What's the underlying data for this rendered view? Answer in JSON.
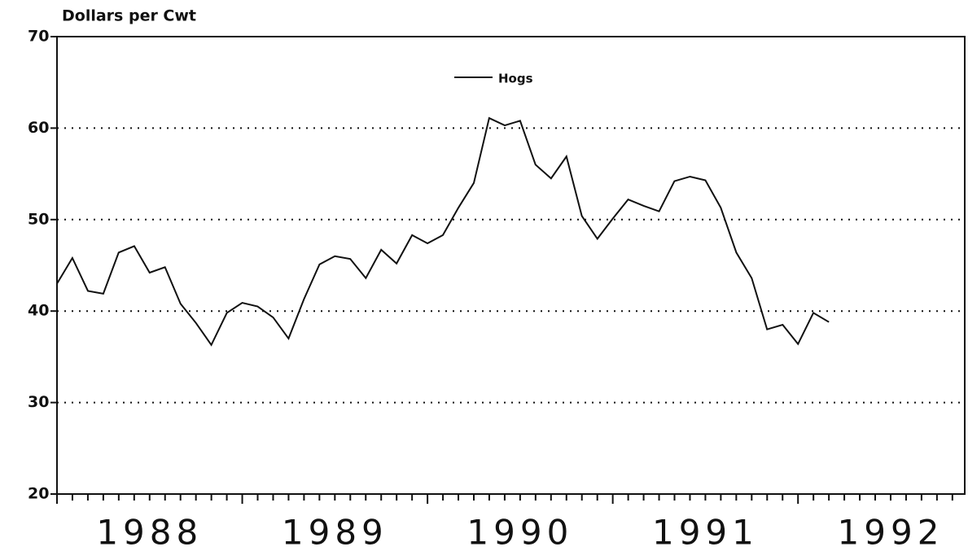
{
  "chart_data": {
    "type": "line",
    "y_label": "Dollars per Cwt",
    "x": [
      1988.0,
      1988.083,
      1988.167,
      1988.25,
      1988.333,
      1988.417,
      1988.5,
      1988.583,
      1988.667,
      1988.75,
      1988.833,
      1988.917,
      1989.0,
      1989.083,
      1989.167,
      1989.25,
      1989.333,
      1989.417,
      1989.5,
      1989.583,
      1989.667,
      1989.75,
      1989.833,
      1989.917,
      1990.0,
      1990.083,
      1990.167,
      1990.25,
      1990.333,
      1990.417,
      1990.5,
      1990.583,
      1990.667,
      1990.75,
      1990.833,
      1990.917,
      1991.0,
      1991.083,
      1991.167,
      1991.25,
      1991.333,
      1991.417,
      1991.5,
      1991.583,
      1991.667,
      1991.75,
      1991.833,
      1991.917,
      1992.0,
      1992.083,
      1992.167
    ],
    "series": [
      {
        "name": "Hogs",
        "color": "#111111",
        "values": [
          43.0,
          45.8,
          42.2,
          41.9,
          46.4,
          47.1,
          44.2,
          44.8,
          40.8,
          38.7,
          36.3,
          39.8,
          40.9,
          40.5,
          39.3,
          37.0,
          41.3,
          45.1,
          46.0,
          45.7,
          43.6,
          46.7,
          45.2,
          48.3,
          47.4,
          48.3,
          51.3,
          54.0,
          61.1,
          60.3,
          60.8,
          56.0,
          54.5,
          56.9,
          50.4,
          47.9,
          50.1,
          52.2,
          51.5,
          50.9,
          54.2,
          54.7,
          54.3,
          51.3,
          46.4,
          43.6,
          38.0,
          38.5,
          36.4,
          39.8,
          38.8
        ]
      }
    ],
    "xlim": [
      1988,
      1992.9
    ],
    "xticks": [
      {
        "value": 1988.5,
        "label": "1988"
      },
      {
        "value": 1989.5,
        "label": "1989"
      },
      {
        "value": 1990.5,
        "label": "1990"
      },
      {
        "value": 1991.5,
        "label": "1991"
      },
      {
        "value": 1992.5,
        "label": "1992"
      }
    ],
    "ylim": [
      20,
      70
    ],
    "yticks": [
      20,
      30,
      40,
      50,
      60,
      70
    ],
    "grid": true
  }
}
